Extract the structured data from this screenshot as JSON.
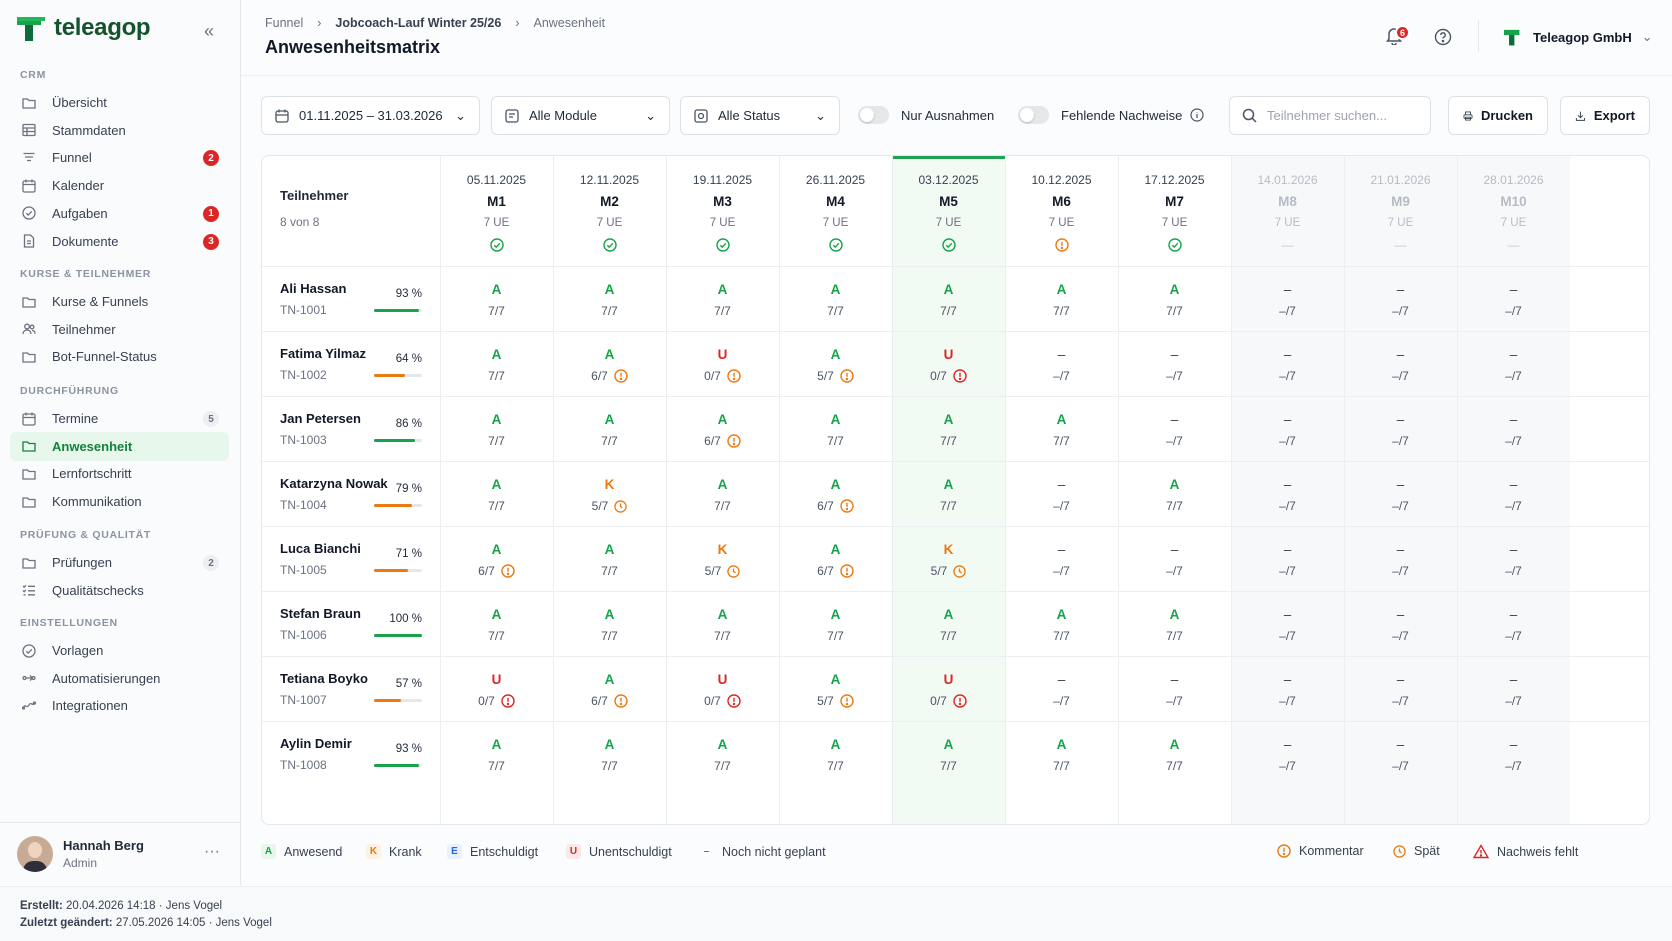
{
  "brand": {
    "name": "teleagop"
  },
  "sidebar": {
    "sections": [
      "CRM",
      "KURSE & TEILNEHMER",
      "DURCHFÜHRUNG",
      "PRÜFUNG & QUALITÄT",
      "EINSTELLUNGEN"
    ],
    "items": [
      {
        "label": "Übersicht",
        "icon": "folder-icon"
      },
      {
        "label": "Stammdaten",
        "icon": "table-icon"
      },
      {
        "label": "Funnel",
        "icon": "filter-icon",
        "badge": "2"
      },
      {
        "label": "Kalender",
        "icon": "calendar-icon"
      },
      {
        "label": "Aufgaben",
        "icon": "check-circle-icon",
        "badge": "1"
      },
      {
        "label": "Dokumente",
        "icon": "document-icon",
        "badge": "3"
      },
      {
        "label": "Kurse & Funnels",
        "icon": "folder-icon"
      },
      {
        "label": "Teilnehmer",
        "icon": "users-icon"
      },
      {
        "label": "Bot-Funnel-Status",
        "icon": "folder-icon"
      },
      {
        "label": "Termine",
        "icon": "calendar-icon",
        "badge": "5"
      },
      {
        "label": "Anwesenheit",
        "icon": "folder-icon",
        "active": true
      },
      {
        "label": "Lernfortschritt",
        "icon": "folder-icon"
      },
      {
        "label": "Kommunikation",
        "icon": "folder-icon"
      },
      {
        "label": "Prüfungen",
        "icon": "folder-icon",
        "badge": "2"
      },
      {
        "label": "Qualitätschecks",
        "icon": "checklist-icon"
      },
      {
        "label": "Vorlagen",
        "icon": "check-circle-icon"
      },
      {
        "label": "Automatisierungen",
        "icon": "automation-icon"
      },
      {
        "label": "Integrationen",
        "icon": "integration-icon"
      }
    ]
  },
  "user": {
    "name": "Hannah Berg",
    "role": "Admin"
  },
  "footer": {
    "created_label": "Erstellt:",
    "created_value": "20.04.2026 14:18",
    "created_by": "Jens Vogel",
    "modified_label": "Zuletzt geändert:",
    "modified_value": "27.05.2026 14:05",
    "modified_by": "Jens Vogel"
  },
  "header": {
    "breadcrumb": [
      "Funnel",
      "Jobcoach-Lauf Winter 25/26",
      "Anwesenheit"
    ],
    "title": "Anwesenheitsmatrix",
    "notifications": "6",
    "company": "Teleagop GmbH"
  },
  "filters": {
    "date_range": "01.11.2025 – 31.03.2026",
    "modules": "Alle Module",
    "status": "Alle Status",
    "toggle_exceptions": "Nur Ausnahmen",
    "toggle_missing": "Fehlende Nachweise",
    "search_placeholder": "Teilnehmer suchen...",
    "print": "Drucken",
    "export": "Export"
  },
  "colors": {
    "green": "#16a34a",
    "orange": "#ea7a12",
    "red": "#dc2626",
    "accent": "#22a053"
  },
  "matrix": {
    "participants_header": "Teilnehmer",
    "participants_count": "8 von 8",
    "modules": [
      {
        "date": "05.11.2025",
        "name": "M1",
        "ue": "7 UE",
        "status": "ok"
      },
      {
        "date": "12.11.2025",
        "name": "M2",
        "ue": "7 UE",
        "status": "ok"
      },
      {
        "date": "19.11.2025",
        "name": "M3",
        "ue": "7 UE",
        "status": "ok"
      },
      {
        "date": "26.11.2025",
        "name": "M4",
        "ue": "7 UE",
        "status": "ok"
      },
      {
        "date": "03.12.2025",
        "name": "M5",
        "ue": "7 UE",
        "status": "ok",
        "current": true
      },
      {
        "date": "10.12.2025",
        "name": "M6",
        "ue": "7 UE",
        "status": "warn"
      },
      {
        "date": "17.12.2025",
        "name": "M7",
        "ue": "7 UE",
        "status": "ok"
      },
      {
        "date": "14.01.2026",
        "name": "M8",
        "ue": "7 UE",
        "status": "future"
      },
      {
        "date": "21.01.2026",
        "name": "M9",
        "ue": "7 UE",
        "status": "future"
      },
      {
        "date": "28.01.2026",
        "name": "M10",
        "ue": "7 UE",
        "status": "future"
      }
    ],
    "rows": [
      {
        "name": "Ali Hassan",
        "id": "TN-1001",
        "pct": "93 %",
        "rate": 0.93,
        "cells": [
          [
            "A",
            "7/7",
            ""
          ],
          [
            "A",
            "7/7",
            ""
          ],
          [
            "A",
            "7/7",
            ""
          ],
          [
            "A",
            "7/7",
            ""
          ],
          [
            "A",
            "7/7",
            ""
          ],
          [
            "A",
            "7/7",
            ""
          ],
          [
            "A",
            "7/7",
            ""
          ],
          [
            "–",
            "–/7",
            ""
          ],
          [
            "–",
            "–/7",
            ""
          ],
          [
            "–",
            "–/7",
            ""
          ]
        ]
      },
      {
        "name": "Fatima Yilmaz",
        "id": "TN-1002",
        "pct": "64 %",
        "rate": 0.64,
        "cells": [
          [
            "A",
            "7/7",
            ""
          ],
          [
            "A",
            "6/7",
            "comment"
          ],
          [
            "U",
            "0/7",
            "comment"
          ],
          [
            "A",
            "5/7",
            "comment"
          ],
          [
            "U",
            "0/7",
            "missing"
          ],
          [
            "–",
            "–/7",
            ""
          ],
          [
            "–",
            "–/7",
            ""
          ],
          [
            "–",
            "–/7",
            ""
          ],
          [
            "–",
            "–/7",
            ""
          ],
          [
            "–",
            "–/7",
            ""
          ]
        ]
      },
      {
        "name": "Jan Petersen",
        "id": "TN-1003",
        "pct": "86 %",
        "rate": 0.86,
        "cells": [
          [
            "A",
            "7/7",
            ""
          ],
          [
            "A",
            "7/7",
            ""
          ],
          [
            "A",
            "6/7",
            "comment"
          ],
          [
            "A",
            "7/7",
            ""
          ],
          [
            "A",
            "7/7",
            ""
          ],
          [
            "A",
            "7/7",
            ""
          ],
          [
            "–",
            "–/7",
            ""
          ],
          [
            "–",
            "–/7",
            ""
          ],
          [
            "–",
            "–/7",
            ""
          ],
          [
            "–",
            "–/7",
            ""
          ]
        ]
      },
      {
        "name": "Katarzyna Nowak",
        "id": "TN-1004",
        "pct": "79 %",
        "rate": 0.79,
        "cells": [
          [
            "A",
            "7/7",
            ""
          ],
          [
            "K",
            "5/7",
            "late"
          ],
          [
            "A",
            "7/7",
            ""
          ],
          [
            "A",
            "6/7",
            "comment"
          ],
          [
            "A",
            "7/7",
            ""
          ],
          [
            "–",
            "–/7",
            ""
          ],
          [
            "A",
            "7/7",
            ""
          ],
          [
            "–",
            "–/7",
            ""
          ],
          [
            "–",
            "–/7",
            ""
          ],
          [
            "–",
            "–/7",
            ""
          ]
        ]
      },
      {
        "name": "Luca Bianchi",
        "id": "TN-1005",
        "pct": "71 %",
        "rate": 0.71,
        "cells": [
          [
            "A",
            "6/7",
            "comment"
          ],
          [
            "A",
            "7/7",
            ""
          ],
          [
            "K",
            "5/7",
            "late"
          ],
          [
            "A",
            "6/7",
            "comment"
          ],
          [
            "K",
            "5/7",
            "late"
          ],
          [
            "–",
            "–/7",
            ""
          ],
          [
            "–",
            "–/7",
            ""
          ],
          [
            "–",
            "–/7",
            ""
          ],
          [
            "–",
            "–/7",
            ""
          ],
          [
            "–",
            "–/7",
            ""
          ]
        ]
      },
      {
        "name": "Stefan Braun",
        "id": "TN-1006",
        "pct": "100 %",
        "rate": 1.0,
        "cells": [
          [
            "A",
            "7/7",
            ""
          ],
          [
            "A",
            "7/7",
            ""
          ],
          [
            "A",
            "7/7",
            ""
          ],
          [
            "A",
            "7/7",
            ""
          ],
          [
            "A",
            "7/7",
            ""
          ],
          [
            "A",
            "7/7",
            ""
          ],
          [
            "A",
            "7/7",
            ""
          ],
          [
            "–",
            "–/7",
            ""
          ],
          [
            "–",
            "–/7",
            ""
          ],
          [
            "–",
            "–/7",
            ""
          ]
        ]
      },
      {
        "name": "Tetiana Boyko",
        "id": "TN-1007",
        "pct": "57 %",
        "rate": 0.57,
        "cells": [
          [
            "U",
            "0/7",
            "missing"
          ],
          [
            "A",
            "6/7",
            "comment"
          ],
          [
            "U",
            "0/7",
            "missing"
          ],
          [
            "A",
            "5/7",
            "comment"
          ],
          [
            "U",
            "0/7",
            "missing"
          ],
          [
            "–",
            "–/7",
            ""
          ],
          [
            "–",
            "–/7",
            ""
          ],
          [
            "–",
            "–/7",
            ""
          ],
          [
            "–",
            "–/7",
            ""
          ],
          [
            "–",
            "–/7",
            ""
          ]
        ]
      },
      {
        "name": "Aylin Demir",
        "id": "TN-1008",
        "pct": "93 %",
        "rate": 0.93,
        "cells": [
          [
            "A",
            "7/7",
            ""
          ],
          [
            "A",
            "7/7",
            ""
          ],
          [
            "A",
            "7/7",
            ""
          ],
          [
            "A",
            "7/7",
            ""
          ],
          [
            "A",
            "7/7",
            ""
          ],
          [
            "A",
            "7/7",
            ""
          ],
          [
            "A",
            "7/7",
            ""
          ],
          [
            "–",
            "–/7",
            ""
          ],
          [
            "–",
            "–/7",
            ""
          ],
          [
            "–",
            "–/7",
            ""
          ]
        ]
      }
    ]
  },
  "legend": {
    "present": {
      "key": "A",
      "label": "Anwesend"
    },
    "sick": {
      "key": "K",
      "label": "Krank"
    },
    "excused": {
      "key": "E",
      "label": "Entschuldigt"
    },
    "unexcused": {
      "key": "U",
      "label": "Unentschuldigt"
    },
    "planned": {
      "key": "–",
      "label": "Noch nicht geplant"
    },
    "comment": "Kommentar",
    "late": "Spät",
    "missing": "Nachweis fehlt"
  }
}
